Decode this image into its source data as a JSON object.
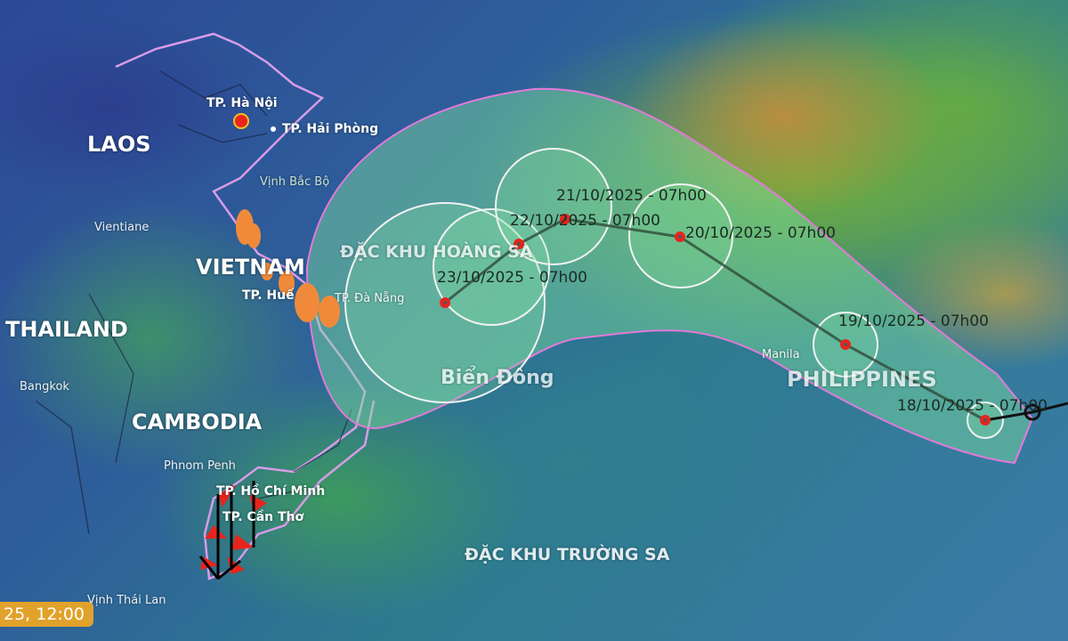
{
  "map": {
    "countries": [
      "LAOS",
      "VIETNAM",
      "THAILAND",
      "CAMBODIA",
      "PHILIPPINES"
    ],
    "cities": {
      "hanoi": "TP. Hà Nội",
      "haiphong": "TP. Hải Phòng",
      "vientiane": "Vientiane",
      "hue": "TP. Huế",
      "danang": "TP. Đà Nẵng",
      "bangkok": "Bangkok",
      "phnompenh": "Phnom Penh",
      "hcm": "TP. Hồ Chí Minh",
      "cantho": "TP. Cần Thơ",
      "manila": "Manila"
    },
    "seas": {
      "bacbo": "Vịnh Bắc Bộ",
      "thailan": "Vịnh Thái Lan",
      "biendong": "Biển Đông",
      "hoangsa": "ĐẶC KHU HOÀNG SA",
      "truongsa": "ĐẶC KHU TRƯỜNG SA"
    },
    "forecast_points": [
      "18/10/2025 - 07h00",
      "19/10/2025 - 07h00",
      "20/10/2025 - 07h00",
      "21/10/2025 - 07h00",
      "22/10/2025 - 07h00",
      "23/10/2025 - 07h00"
    ],
    "time_badge": "25, 12:00",
    "colors": {
      "cone": "#7fe0a0",
      "cone_border": "#e07ad8",
      "storm_icon": "#e8241c",
      "track": "#2f4a3a",
      "border": "#d79ce8"
    },
    "icons": [
      "storm-icon",
      "capital-star-icon",
      "wind-barb-icon",
      "rain-drop-icon"
    ]
  }
}
